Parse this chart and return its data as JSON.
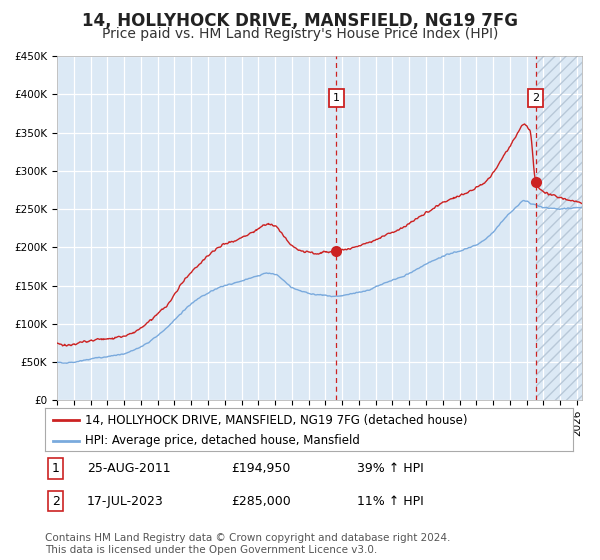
{
  "title": "14, HOLLYHOCK DRIVE, MANSFIELD, NG19 7FG",
  "subtitle": "Price paid vs. HM Land Registry's House Price Index (HPI)",
  "ylim": [
    0,
    450000
  ],
  "xlim_start": 1995.0,
  "xlim_end": 2026.3,
  "yticks": [
    0,
    50000,
    100000,
    150000,
    200000,
    250000,
    300000,
    350000,
    400000,
    450000
  ],
  "ytick_labels": [
    "£0",
    "£50K",
    "£100K",
    "£150K",
    "£200K",
    "£250K",
    "£300K",
    "£350K",
    "£400K",
    "£450K"
  ],
  "background_color": "#dce9f5",
  "grid_color": "#ffffff",
  "red_line_color": "#cc2222",
  "blue_line_color": "#7aaadd",
  "marker_color": "#cc2222",
  "dashed_line_color": "#cc2222",
  "transaction1_x": 2011.65,
  "transaction1_y": 194950,
  "transaction2_x": 2023.54,
  "transaction2_y": 285000,
  "hatch_start": 2023.54,
  "legend_label_red": "14, HOLLYHOCK DRIVE, MANSFIELD, NG19 7FG (detached house)",
  "legend_label_blue": "HPI: Average price, detached house, Mansfield",
  "table_rows": [
    [
      "1",
      "25-AUG-2011",
      "£194,950",
      "39% ↑ HPI"
    ],
    [
      "2",
      "17-JUL-2023",
      "£285,000",
      "11% ↑ HPI"
    ]
  ],
  "footer_text": "Contains HM Land Registry data © Crown copyright and database right 2024.\nThis data is licensed under the Open Government Licence v3.0.",
  "title_fontsize": 12,
  "subtitle_fontsize": 10,
  "tick_fontsize": 7.5,
  "legend_fontsize": 8.5,
  "table_fontsize": 9,
  "footer_fontsize": 7.5
}
